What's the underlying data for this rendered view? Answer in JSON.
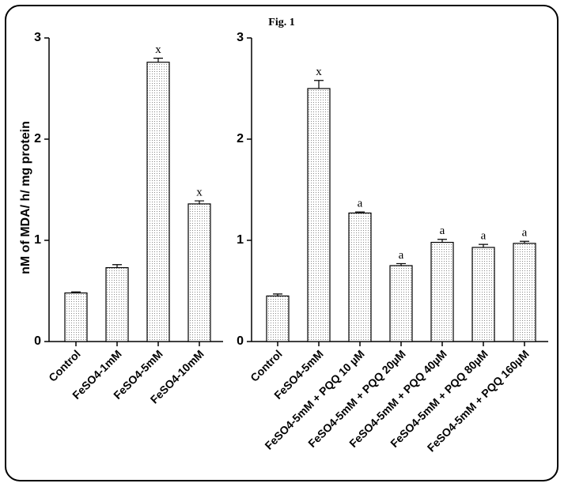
{
  "chart_data": [
    {
      "type": "bar",
      "title": "Fig. 1",
      "ylabel": "nM of MDA/ h/ mg protein",
      "categories": [
        "Control",
        "FeSO4-1mM",
        "FeSO4-5mM",
        "FeSO4-10mM"
      ],
      "values": [
        0.48,
        0.73,
        2.76,
        1.36
      ],
      "errors": [
        0.01,
        0.03,
        0.04,
        0.03
      ],
      "bar_labels": [
        null,
        null,
        "x",
        "x"
      ],
      "ylim": [
        0,
        3
      ],
      "yticks": [
        0,
        1,
        2,
        3
      ]
    },
    {
      "type": "bar",
      "categories": [
        "Control",
        "FeSO4-5mM",
        "FeSO4-5mM + PQQ 10 µM",
        "FeSO4-5mM + PQQ 20µM",
        "FeSO4-5mM + PQQ 40µM",
        "FeSO4-5mM + PQQ 80µM",
        "FeSO4-5mM + PQQ 160µM"
      ],
      "values": [
        0.45,
        2.5,
        1.27,
        0.75,
        0.98,
        0.93,
        0.97
      ],
      "errors": [
        0.02,
        0.08,
        0.01,
        0.02,
        0.03,
        0.03,
        0.02
      ],
      "bar_labels": [
        null,
        "x",
        "a",
        "a",
        "a",
        "a",
        "a"
      ],
      "ylim": [
        0,
        3
      ],
      "yticks": [
        0,
        1,
        2,
        3
      ]
    }
  ]
}
